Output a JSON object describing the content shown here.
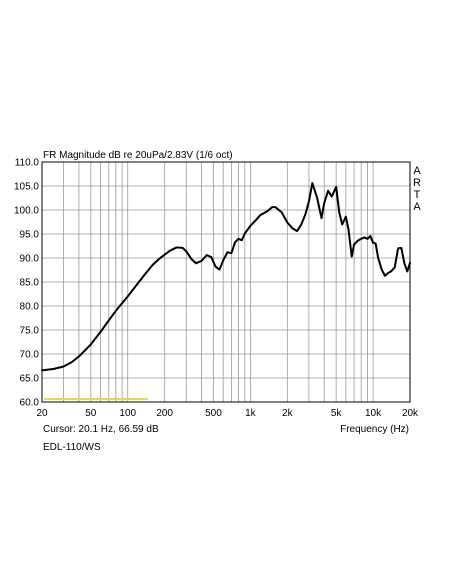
{
  "chart_data": {
    "type": "line",
    "title": "FR Magnitude dB re 20uPa/2.83V (1/6 oct)",
    "xlabel": "Frequency (Hz)",
    "ylabel": "",
    "x_scale": "log",
    "xlim": [
      20,
      20000
    ],
    "ylim": [
      60,
      110
    ],
    "grid": true,
    "x_ticks": [
      20,
      50,
      100,
      200,
      500,
      1000,
      2000,
      5000,
      10000,
      20000
    ],
    "x_tick_labels": [
      "20",
      "50",
      "100",
      "200",
      "500",
      "1k",
      "2k",
      "5k",
      "10k",
      "20k"
    ],
    "y_ticks": [
      60,
      65,
      70,
      75,
      80,
      85,
      90,
      95,
      100,
      105,
      110
    ],
    "y_tick_labels": [
      "60.0",
      "65.0",
      "70.0",
      "75.0",
      "80.0",
      "85.0",
      "90.0",
      "95.0",
      "100.0",
      "105.0",
      "110.0"
    ],
    "side_label": [
      "A",
      "R",
      "T",
      "A"
    ],
    "cursor_text": "Cursor: 20.1 Hz, 66.59 dB",
    "footer_text": "EDL-110/WS",
    "colors": {
      "curve": "#000000",
      "cursor_marker": "#e8d84a",
      "grid": "#9a9a9a"
    },
    "series": [
      {
        "x": [
          20,
          25,
          30,
          35,
          40,
          45,
          50,
          60,
          70,
          80,
          90,
          100,
          120,
          140,
          160,
          180,
          200,
          220,
          250,
          280,
          300,
          330,
          360,
          400,
          440,
          480,
          520,
          560,
          600,
          650,
          700,
          750,
          800,
          850,
          900,
          1000,
          1100,
          1200,
          1300,
          1400,
          1500,
          1600,
          1800,
          2000,
          2200,
          2400,
          2600,
          2800,
          3000,
          3200,
          3500,
          3800,
          4000,
          4300,
          4600,
          5000,
          5300,
          5600,
          6000,
          6300,
          6700,
          7000,
          7500,
          8000,
          8500,
          9000,
          9500,
          10000,
          10500,
          11000,
          11800,
          12500,
          13300,
          14000,
          15000,
          16000,
          17000,
          18000,
          19000,
          20000
        ],
        "y": [
          66.6,
          66.9,
          67.4,
          68.3,
          69.5,
          70.8,
          72.0,
          74.6,
          77.0,
          79.0,
          80.6,
          82.0,
          84.6,
          86.8,
          88.6,
          89.8,
          90.7,
          91.5,
          92.2,
          92.1,
          91.4,
          89.8,
          88.9,
          89.4,
          90.6,
          90.2,
          88.2,
          87.6,
          89.5,
          91.2,
          91.0,
          93.3,
          94.0,
          93.7,
          95.1,
          96.7,
          97.8,
          98.9,
          99.4,
          99.9,
          100.6,
          100.6,
          99.5,
          97.4,
          96.2,
          95.6,
          97.0,
          99.0,
          101.8,
          105.6,
          102.5,
          98.3,
          101.5,
          104.0,
          102.8,
          104.8,
          99.5,
          97.0,
          98.6,
          96.0,
          90.3,
          92.8,
          93.6,
          94.0,
          94.3,
          94.0,
          94.6,
          93.2,
          93.0,
          90.0,
          87.5,
          86.3,
          86.9,
          87.2,
          88.0,
          92.0,
          92.1,
          88.9,
          87.2,
          89.0
        ]
      }
    ]
  }
}
